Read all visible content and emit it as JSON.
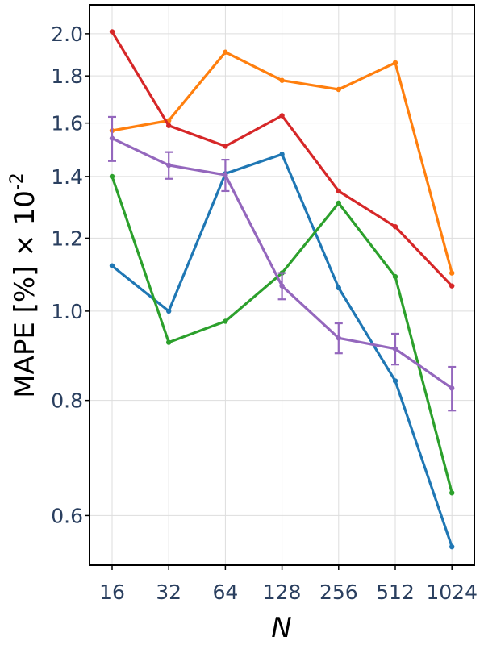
{
  "chart_data": {
    "type": "line",
    "title": "",
    "xlabel": "N",
    "ylabel": {
      "text": "MAPE [%] × 10",
      "superscript": "-2"
    },
    "y_scale": "log",
    "ylim": [
      0.53,
      2.15
    ],
    "grid": true,
    "legend": "none",
    "categories": [
      "16",
      "32",
      "64",
      "128",
      "256",
      "512",
      "1024"
    ],
    "y_ticks": [
      {
        "value": 0.6,
        "label": "0.6"
      },
      {
        "value": 0.8,
        "label": "0.8"
      },
      {
        "value": 1.0,
        "label": "1.0"
      },
      {
        "value": 1.2,
        "label": "1.2"
      },
      {
        "value": 1.4,
        "label": "1.4"
      },
      {
        "value": 1.6,
        "label": "1.6"
      },
      {
        "value": 1.8,
        "label": "1.8"
      },
      {
        "value": 2.0,
        "label": "2.0"
      }
    ],
    "series": [
      {
        "color": "#1f77b4",
        "values": [
          1.12,
          1.0,
          1.41,
          1.48,
          1.06,
          0.84,
          0.555
        ]
      },
      {
        "color": "#ff7f0e",
        "values": [
          1.57,
          1.61,
          1.91,
          1.78,
          1.74,
          1.86,
          1.1
        ]
      },
      {
        "color": "#2ca02c",
        "values": [
          1.4,
          0.925,
          0.975,
          1.1,
          1.31,
          1.09,
          0.635
        ]
      },
      {
        "color": "#d62728",
        "values": [
          2.01,
          1.59,
          1.51,
          1.63,
          1.35,
          1.235,
          1.065
        ]
      },
      {
        "color": "#9467bd",
        "values": [
          1.54,
          1.44,
          1.405,
          1.065,
          0.935,
          0.91,
          0.825
        ],
        "error": [
          0.085,
          0.048,
          0.055,
          0.035,
          0.035,
          0.035,
          0.045
        ]
      }
    ]
  }
}
